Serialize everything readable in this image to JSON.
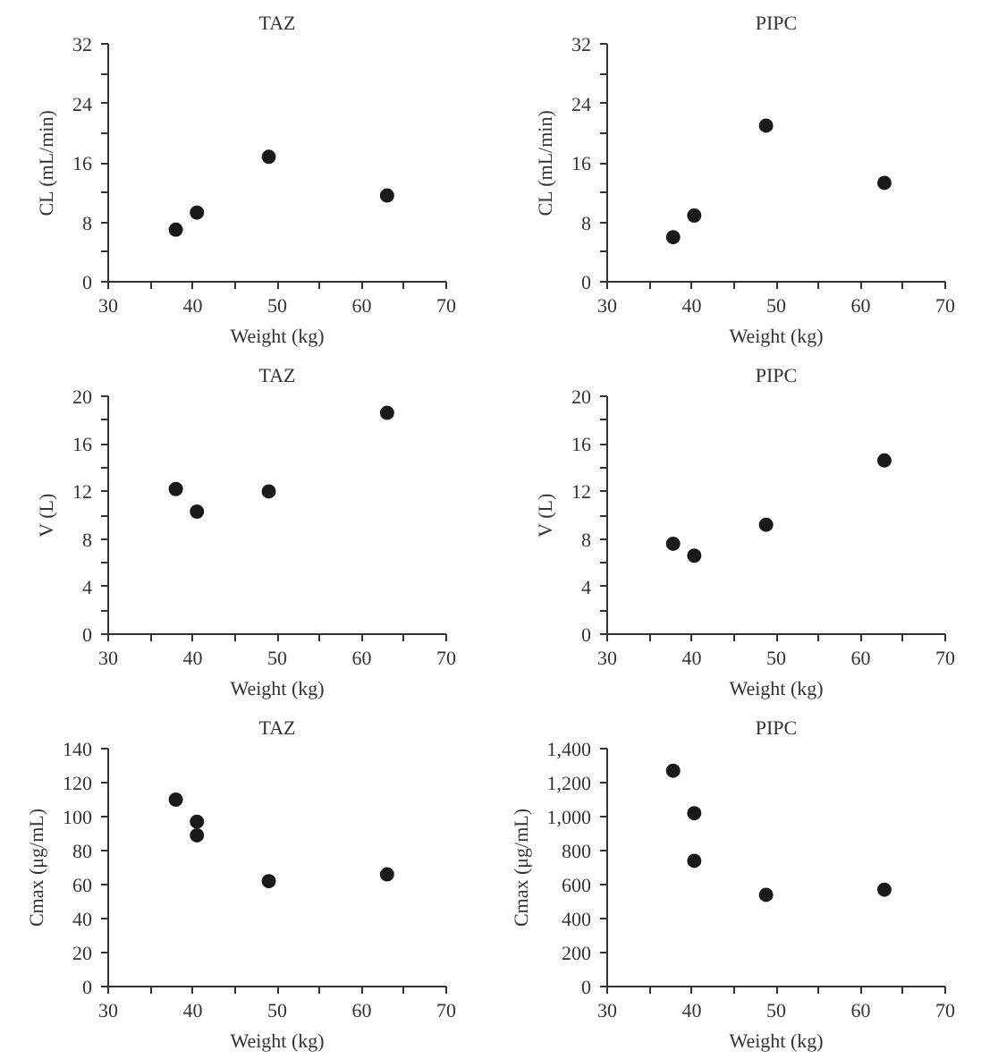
{
  "chart_data": [
    {
      "type": "scatter",
      "title": "TAZ",
      "xlabel": "Weight (kg)",
      "ylabel": "CL (mL/min)",
      "x": [
        38,
        40.5,
        49,
        63
      ],
      "values": [
        7,
        9.3,
        16.8,
        11.6
      ],
      "color": "#1a1a1a",
      "marker": "circle",
      "grid": false,
      "xlim": [
        30,
        70
      ],
      "ylim": [
        0,
        32
      ],
      "xticks": [
        30,
        {
          "value": 35,
          "label": null
        },
        40,
        {
          "value": 45,
          "label": null
        },
        50,
        {
          "value": 55,
          "label": null
        },
        60,
        {
          "value": 65,
          "label": null
        },
        70
      ],
      "yticks": [
        0,
        {
          "value": 4,
          "label": null
        },
        8,
        {
          "value": 12,
          "label": null
        },
        16,
        {
          "value": 20,
          "label": null
        },
        24,
        {
          "value": 28,
          "label": null
        },
        32
      ]
    },
    {
      "type": "scatter",
      "title": "PIPC",
      "xlabel": "Weight (kg)",
      "ylabel": "CL (mL/min)",
      "x": [
        37.8,
        40.3,
        48.8,
        62.8
      ],
      "values": [
        6,
        8.9,
        21,
        13.3
      ],
      "color": "#1a1a1a",
      "marker": "circle",
      "grid": false,
      "xlim": [
        30,
        70
      ],
      "ylim": [
        0,
        32
      ],
      "xticks": [
        30,
        {
          "value": 35,
          "label": null
        },
        40,
        {
          "value": 45,
          "label": null
        },
        50,
        {
          "value": 55,
          "label": null
        },
        60,
        {
          "value": 65,
          "label": null
        },
        70
      ],
      "yticks": [
        0,
        {
          "value": 4,
          "label": null
        },
        8,
        {
          "value": 12,
          "label": null
        },
        16,
        {
          "value": 20,
          "label": null
        },
        24,
        {
          "value": 28,
          "label": null
        },
        32
      ]
    },
    {
      "type": "scatter",
      "title": "TAZ",
      "xlabel": "Weight (kg)",
      "ylabel": "V (L)",
      "x": [
        38,
        40.5,
        49,
        63
      ],
      "values": [
        12.2,
        10.3,
        12,
        18.6
      ],
      "color": "#1a1a1a",
      "marker": "circle",
      "grid": false,
      "xlim": [
        30,
        70
      ],
      "ylim": [
        0,
        20
      ],
      "xticks": [
        30,
        {
          "value": 35,
          "label": null
        },
        40,
        {
          "value": 45,
          "label": null
        },
        50,
        {
          "value": 55,
          "label": null
        },
        60,
        {
          "value": 65,
          "label": null
        },
        70
      ],
      "yticks": [
        0,
        {
          "value": 2,
          "label": null
        },
        4,
        {
          "value": 6,
          "label": null
        },
        8,
        {
          "value": 10,
          "label": null
        },
        12,
        {
          "value": 14,
          "label": null
        },
        16,
        {
          "value": 18,
          "label": null
        },
        20
      ]
    },
    {
      "type": "scatter",
      "title": "PIPC",
      "xlabel": "Weight (kg)",
      "ylabel": "V (L)",
      "x": [
        37.8,
        40.3,
        48.8,
        62.8
      ],
      "values": [
        7.6,
        6.6,
        9.2,
        14.6
      ],
      "color": "#1a1a1a",
      "marker": "circle",
      "grid": false,
      "xlim": [
        30,
        70
      ],
      "ylim": [
        0,
        20
      ],
      "xticks": [
        30,
        {
          "value": 35,
          "label": null
        },
        40,
        {
          "value": 45,
          "label": null
        },
        50,
        {
          "value": 55,
          "label": null
        },
        60,
        {
          "value": 65,
          "label": null
        },
        70
      ],
      "yticks": [
        0,
        {
          "value": 2,
          "label": null
        },
        4,
        {
          "value": 6,
          "label": null
        },
        8,
        {
          "value": 10,
          "label": null
        },
        12,
        {
          "value": 14,
          "label": null
        },
        16,
        {
          "value": 18,
          "label": null
        },
        20
      ]
    },
    {
      "type": "scatter",
      "title": "TAZ",
      "xlabel": "Weight (kg)",
      "ylabel": "Cmax (μg/mL)",
      "x": [
        38,
        40.5,
        40.5,
        49,
        63
      ],
      "values": [
        110,
        97,
        89,
        62,
        66
      ],
      "color": "#1a1a1a",
      "marker": "circle",
      "grid": false,
      "xlim": [
        30,
        70
      ],
      "ylim": [
        0,
        140
      ],
      "xticks": [
        30,
        {
          "value": 35,
          "label": null
        },
        40,
        {
          "value": 45,
          "label": null
        },
        50,
        {
          "value": 55,
          "label": null
        },
        60,
        {
          "value": 65,
          "label": null
        },
        70
      ],
      "yticks": [
        0,
        20,
        40,
        60,
        80,
        100,
        120,
        140
      ]
    },
    {
      "type": "scatter",
      "title": "PIPC",
      "xlabel": "Weight (kg)",
      "ylabel": "Cmax (μg/mL)",
      "x": [
        37.8,
        40.3,
        40.3,
        48.8,
        62.8
      ],
      "values": [
        1270,
        1020,
        740,
        540,
        570
      ],
      "color": "#1a1a1a",
      "marker": "circle",
      "grid": false,
      "xlim": [
        30,
        70
      ],
      "ylim": [
        0,
        1400
      ],
      "xticks": [
        30,
        {
          "value": 35,
          "label": null
        },
        40,
        {
          "value": 45,
          "label": null
        },
        50,
        {
          "value": 55,
          "label": null
        },
        60,
        {
          "value": 65,
          "label": null
        },
        70
      ],
      "yticks": [
        0,
        200,
        400,
        600,
        800,
        {
          "value": 1000,
          "label": "1,000"
        },
        {
          "value": 1200,
          "label": "1,200"
        },
        {
          "value": 1400,
          "label": "1,400"
        }
      ]
    }
  ]
}
